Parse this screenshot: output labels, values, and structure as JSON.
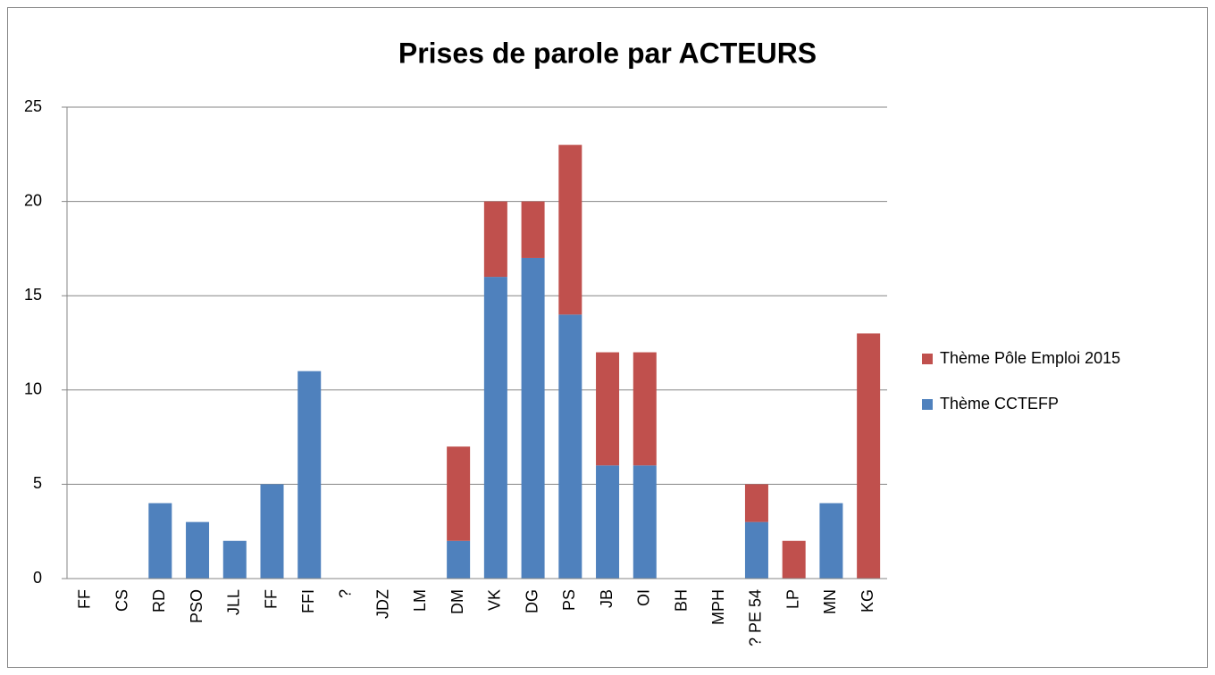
{
  "chart_data": {
    "type": "stacked_bar",
    "title": "Prises de parole par ACTEURS",
    "categories": [
      "FF",
      "CS",
      "RD",
      "PSO",
      "JLL",
      "FF",
      "FFI",
      "?",
      "JDZ",
      "LM",
      "DM",
      "VK",
      "DG",
      "PS",
      "JB",
      "OI",
      "BH",
      "MPH",
      "? PE 54",
      "LP",
      "MN",
      "KG"
    ],
    "series": [
      {
        "name": "Thème CCTEFP",
        "color": "#4f81bd",
        "values": [
          0,
          0,
          4,
          3,
          2,
          5,
          11,
          0,
          0,
          0,
          2,
          16,
          17,
          14,
          6,
          6,
          0,
          0,
          3,
          0,
          4,
          0
        ]
      },
      {
        "name": "Thème Pôle Emploi 2015",
        "color": "#c0504d",
        "values": [
          0,
          0,
          0,
          0,
          0,
          0,
          0,
          0,
          0,
          0,
          5,
          4,
          3,
          9,
          6,
          6,
          0,
          0,
          2,
          2,
          0,
          13
        ]
      }
    ],
    "ylim": [
      0,
      25
    ],
    "yticks": [
      0,
      5,
      10,
      15,
      20,
      25
    ],
    "grid": true,
    "legend": "right"
  }
}
